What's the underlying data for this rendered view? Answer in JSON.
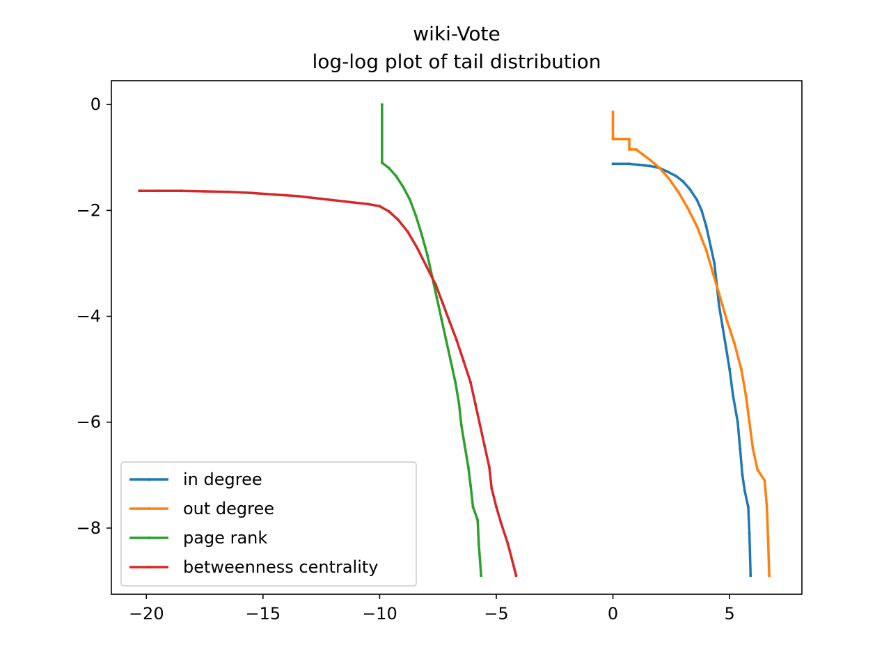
{
  "chart_data": {
    "type": "line",
    "title": "wiki-Vote",
    "subtitle": "log-log plot of tail distribution",
    "xlabel": "",
    "ylabel": "",
    "xlim": [
      -21.5,
      8.1
    ],
    "ylim": [
      -9.25,
      0.45
    ],
    "xticks": [
      -20,
      -15,
      -10,
      -5,
      0,
      5
    ],
    "xtick_labels": [
      "−20",
      "−15",
      "−10",
      "−5",
      "0",
      "5"
    ],
    "yticks": [
      0,
      -2,
      -4,
      -6,
      -8
    ],
    "ytick_labels": [
      "0",
      "−2",
      "−4",
      "−6",
      "−8"
    ],
    "grid": false,
    "legend": {
      "placement": "lower-left"
    },
    "series": [
      {
        "name": "in degree",
        "color": "#1f77b4",
        "points": [
          [
            0.0,
            -1.12
          ],
          [
            0.7,
            -1.12
          ],
          [
            1.1,
            -1.14
          ],
          [
            1.6,
            -1.16
          ],
          [
            2.0,
            -1.2
          ],
          [
            2.3,
            -1.26
          ],
          [
            2.7,
            -1.35
          ],
          [
            3.0,
            -1.45
          ],
          [
            3.3,
            -1.6
          ],
          [
            3.6,
            -1.8
          ],
          [
            3.8,
            -2.0
          ],
          [
            4.0,
            -2.3
          ],
          [
            4.2,
            -2.7
          ],
          [
            4.35,
            -3.0
          ],
          [
            4.45,
            -3.4
          ],
          [
            4.55,
            -3.8
          ],
          [
            4.7,
            -4.2
          ],
          [
            4.85,
            -4.6
          ],
          [
            5.0,
            -5.0
          ],
          [
            5.15,
            -5.5
          ],
          [
            5.35,
            -6.0
          ],
          [
            5.45,
            -6.5
          ],
          [
            5.55,
            -7.0
          ],
          [
            5.65,
            -7.3
          ],
          [
            5.8,
            -7.6
          ],
          [
            5.85,
            -8.1
          ],
          [
            5.9,
            -8.9
          ]
        ]
      },
      {
        "name": "out degree",
        "color": "#ff7f0e",
        "points": [
          [
            0.0,
            -0.14
          ],
          [
            0.0,
            -0.65
          ],
          [
            0.7,
            -0.65
          ],
          [
            0.7,
            -0.85
          ],
          [
            1.0,
            -0.85
          ],
          [
            1.3,
            -0.95
          ],
          [
            1.6,
            -1.05
          ],
          [
            2.0,
            -1.2
          ],
          [
            2.4,
            -1.4
          ],
          [
            2.8,
            -1.65
          ],
          [
            3.2,
            -1.95
          ],
          [
            3.6,
            -2.3
          ],
          [
            4.0,
            -2.75
          ],
          [
            4.3,
            -3.2
          ],
          [
            4.6,
            -3.65
          ],
          [
            4.9,
            -4.1
          ],
          [
            5.2,
            -4.5
          ],
          [
            5.5,
            -5.0
          ],
          [
            5.7,
            -5.5
          ],
          [
            5.85,
            -6.0
          ],
          [
            6.0,
            -6.5
          ],
          [
            6.2,
            -6.9
          ],
          [
            6.5,
            -7.1
          ],
          [
            6.6,
            -7.6
          ],
          [
            6.65,
            -8.2
          ],
          [
            6.7,
            -8.9
          ]
        ]
      },
      {
        "name": "page rank",
        "color": "#2ca02c",
        "points": [
          [
            -9.9,
            0.0
          ],
          [
            -9.9,
            -1.1
          ],
          [
            -9.6,
            -1.2
          ],
          [
            -9.3,
            -1.35
          ],
          [
            -9.0,
            -1.55
          ],
          [
            -8.7,
            -1.8
          ],
          [
            -8.45,
            -2.1
          ],
          [
            -8.2,
            -2.45
          ],
          [
            -7.95,
            -2.85
          ],
          [
            -7.75,
            -3.25
          ],
          [
            -7.55,
            -3.65
          ],
          [
            -7.35,
            -4.05
          ],
          [
            -7.15,
            -4.45
          ],
          [
            -6.95,
            -4.85
          ],
          [
            -6.75,
            -5.25
          ],
          [
            -6.6,
            -5.65
          ],
          [
            -6.5,
            -6.05
          ],
          [
            -6.35,
            -6.45
          ],
          [
            -6.2,
            -6.85
          ],
          [
            -6.1,
            -7.2
          ],
          [
            -6.0,
            -7.6
          ],
          [
            -5.8,
            -7.85
          ],
          [
            -5.75,
            -8.3
          ],
          [
            -5.65,
            -8.9
          ]
        ]
      },
      {
        "name": "betweenness centrality",
        "color": "#d62728",
        "points": [
          [
            -20.3,
            -1.63
          ],
          [
            -19.5,
            -1.63
          ],
          [
            -18.5,
            -1.63
          ],
          [
            -17.5,
            -1.64
          ],
          [
            -16.5,
            -1.65
          ],
          [
            -15.5,
            -1.67
          ],
          [
            -14.5,
            -1.7
          ],
          [
            -13.5,
            -1.73
          ],
          [
            -12.5,
            -1.78
          ],
          [
            -11.5,
            -1.83
          ],
          [
            -10.5,
            -1.88
          ],
          [
            -10.0,
            -1.92
          ],
          [
            -9.6,
            -2.02
          ],
          [
            -9.2,
            -2.18
          ],
          [
            -8.8,
            -2.4
          ],
          [
            -8.4,
            -2.7
          ],
          [
            -8.0,
            -3.05
          ],
          [
            -7.6,
            -3.4
          ],
          [
            -7.3,
            -3.75
          ],
          [
            -7.0,
            -4.1
          ],
          [
            -6.7,
            -4.45
          ],
          [
            -6.4,
            -4.85
          ],
          [
            -6.1,
            -5.25
          ],
          [
            -5.9,
            -5.65
          ],
          [
            -5.7,
            -6.05
          ],
          [
            -5.5,
            -6.45
          ],
          [
            -5.3,
            -6.85
          ],
          [
            -5.2,
            -7.25
          ],
          [
            -5.0,
            -7.6
          ],
          [
            -4.8,
            -7.9
          ],
          [
            -4.5,
            -8.3
          ],
          [
            -4.15,
            -8.9
          ]
        ]
      }
    ]
  }
}
